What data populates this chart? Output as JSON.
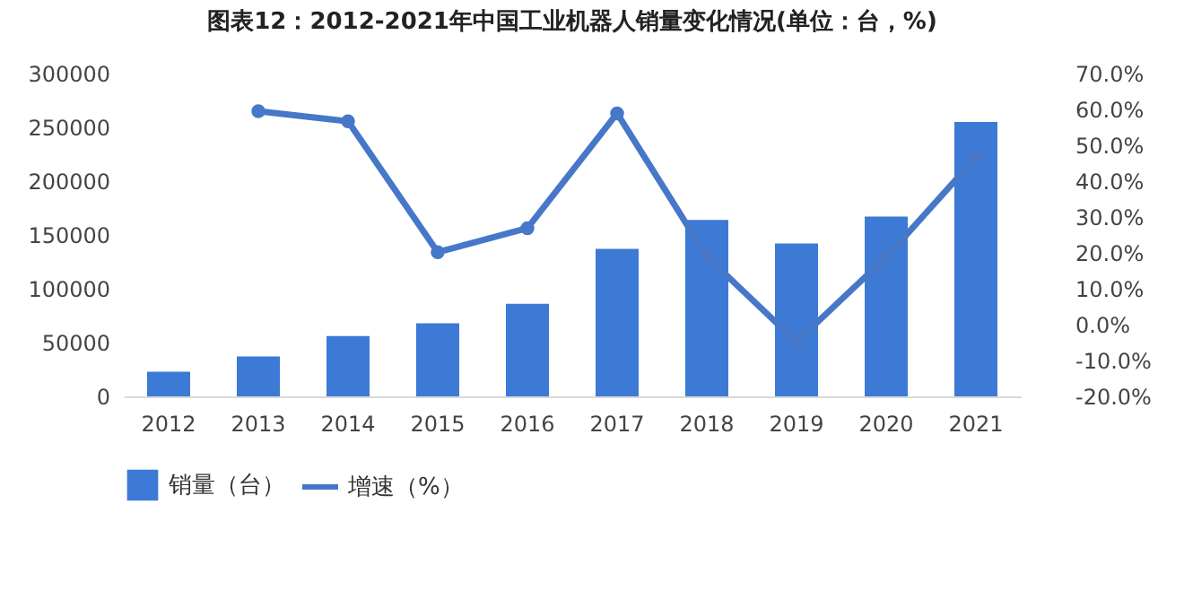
{
  "chart_data": {
    "type": "bar",
    "title": "图表12：2012-2021年中国工业机器人销量变化情况(单位：台，%)",
    "categories": [
      "2012",
      "2013",
      "2014",
      "2015",
      "2016",
      "2017",
      "2018",
      "2019",
      "2020",
      "2021"
    ],
    "series": [
      {
        "name": "销量（台）",
        "color": "#3c7ad6",
        "values": [
          23000,
          37000,
          56000,
          68000,
          86000,
          137000,
          164000,
          142000,
          167000,
          255000
        ]
      },
      {
        "name": "增速（%）",
        "type": "line",
        "axis": "y2",
        "color": "#4677c8",
        "marker": "circle",
        "values": [
          null,
          59.5,
          56.7,
          20.2,
          26.9,
          58.9,
          19.0,
          -4.8,
          18.8,
          46.6
        ]
      }
    ],
    "ylim": [
      0,
      300000
    ],
    "yticks": [
      0,
      50000,
      100000,
      150000,
      200000,
      250000,
      300000
    ],
    "y2lim": [
      -20,
      70
    ],
    "y2ticks": [
      {
        "value": -20,
        "label": "-20.0%"
      },
      {
        "value": -10,
        "label": "-10.0%"
      },
      {
        "value": 0,
        "label": "0.0%"
      },
      {
        "value": 10,
        "label": "10.0%"
      },
      {
        "value": 20,
        "label": "20.0%"
      },
      {
        "value": 30,
        "label": "30.0%"
      },
      {
        "value": 40,
        "label": "40.0%"
      },
      {
        "value": 50,
        "label": "50.0%"
      },
      {
        "value": 60,
        "label": "60.0%"
      },
      {
        "value": 70,
        "label": "70.0%"
      }
    ],
    "grid": false,
    "legend": "bottom"
  }
}
